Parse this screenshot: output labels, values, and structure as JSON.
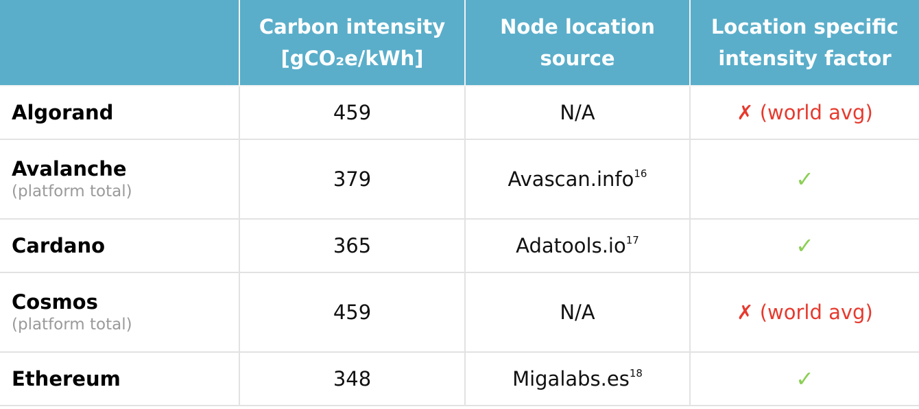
{
  "header": {
    "col0": "",
    "col1_line1": "Carbon intensity",
    "col1_line2": "[gCO₂e/kWh]",
    "col2_line1": "Node location",
    "col2_line2": "source",
    "col3_line1": "Location specific",
    "col3_line2": "intensity factor"
  },
  "rows": [
    {
      "name": "Algorand",
      "sub": "",
      "intensity": "459",
      "source": "N/A",
      "source_ref": "",
      "factor": "✗ (world avg)",
      "factor_status": "world-avg"
    },
    {
      "name": "Avalanche",
      "sub": "(platform total)",
      "intensity": "379",
      "source": "Avascan.info",
      "source_ref": "16",
      "factor": "✓",
      "factor_status": "location-specific"
    },
    {
      "name": "Cardano",
      "sub": "",
      "intensity": "365",
      "source": "Adatools.io",
      "source_ref": "17",
      "factor": "✓",
      "factor_status": "location-specific"
    },
    {
      "name": "Cosmos",
      "sub": "(platform total)",
      "intensity": "459",
      "source": "N/A",
      "source_ref": "",
      "factor": "✗ (world avg)",
      "factor_status": "world-avg"
    },
    {
      "name": "Ethereum",
      "sub": "",
      "intensity": "348",
      "source": "Migalabs.es",
      "source_ref": "18",
      "factor": "✓",
      "factor_status": "location-specific"
    }
  ],
  "colors": {
    "header_bg": "#5aaeca",
    "cross": "#e63a2e",
    "check": "#8bcf55",
    "subtext": "#9a9a9a"
  }
}
